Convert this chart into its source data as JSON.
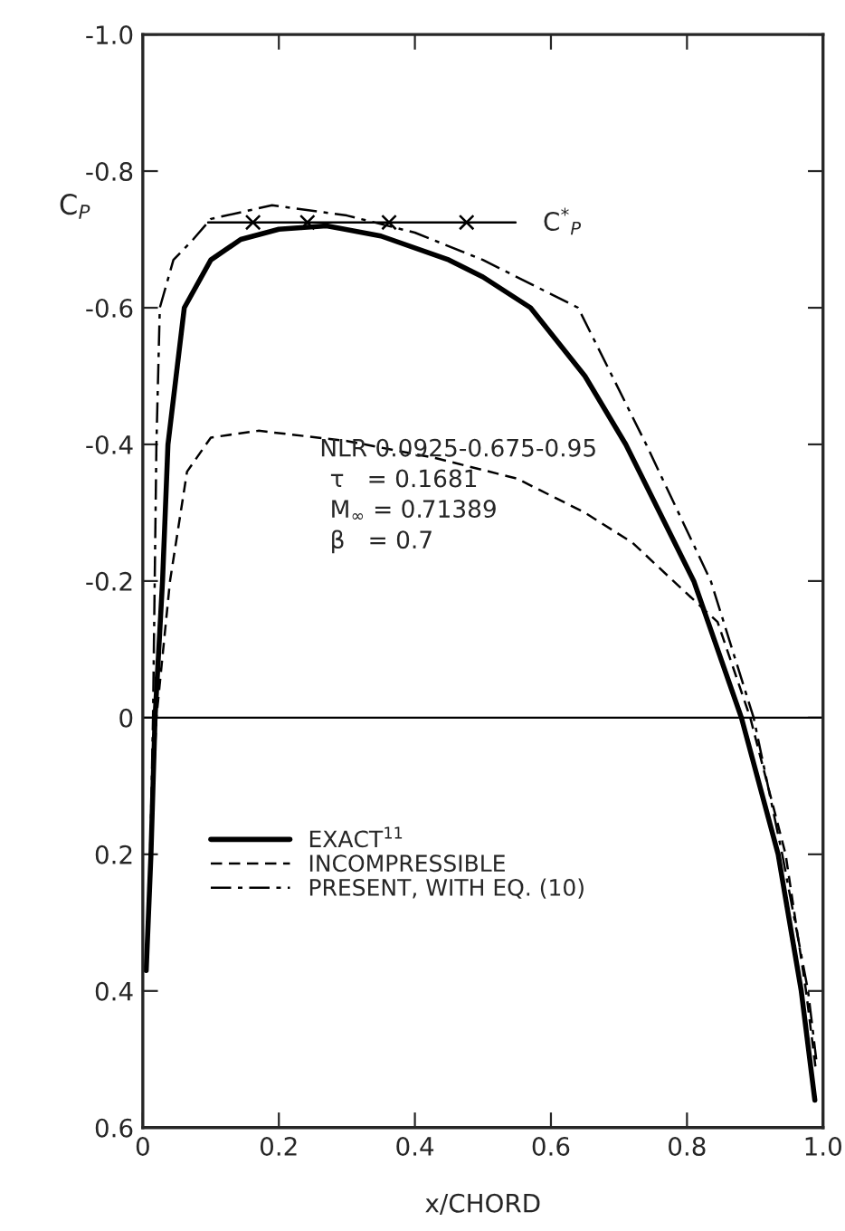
{
  "chart_data": {
    "type": "line",
    "xlabel": "x/CHORD",
    "ylabel": "C$_{P}$",
    "xlim": [
      0,
      1.0
    ],
    "xticks": [
      0,
      0.2,
      0.4,
      0.6,
      0.8,
      {
        "value": 1.0,
        "label": "1.0"
      }
    ],
    "ylim": [
      0.6,
      -1.0
    ],
    "yticks": [
      {
        "value": -1.0,
        "label": "-1.0"
      },
      {
        "value": -0.8,
        "label": "-0.8"
      },
      {
        "value": -0.6,
        "label": "-0.6"
      },
      {
        "value": -0.4,
        "label": "-0.4"
      },
      {
        "value": -0.2,
        "label": "-0.2"
      },
      0,
      0.2,
      0.4,
      0.6
    ],
    "grid": false,
    "legend": "left",
    "ref_lines": [
      {
        "axis": "y",
        "value": 0,
        "color": "#000000"
      }
    ],
    "annotations": [
      "NLR 0.0925-0.675-0.95",
      "τ   = 0.1681",
      "M$_{∞}$ = 0.71389",
      "β   = 0.7",
      {
        "text": "C$^{*}$$_{P}$",
        "x": 0.548,
        "y": -0.725
      }
    ],
    "series": [
      {
        "name": "EXACT$^{11}$",
        "color": "#000000",
        "line_style": "solid",
        "x": [
          0.005,
          0.012,
          0.018,
          0.029,
          0.037,
          0.061,
          0.1,
          0.144,
          0.2,
          0.27,
          0.35,
          0.45,
          0.5,
          0.57,
          0.65,
          0.71,
          0.81,
          0.88,
          0.934,
          0.968,
          0.988
        ],
        "values": [
          0.37,
          0.2,
          0,
          -0.2,
          -0.4,
          -0.6,
          -0.67,
          -0.7,
          -0.715,
          -0.72,
          -0.705,
          -0.67,
          -0.645,
          -0.6,
          -0.5,
          -0.4,
          -0.2,
          0,
          0.2,
          0.4,
          0.56
        ]
      },
      {
        "name": "INCOMPRESSIBLE",
        "color": "#000000",
        "line_style": "dashed",
        "x": [
          0.006,
          0.012,
          0.02,
          0.04,
          0.065,
          0.1,
          0.17,
          0.3,
          0.43,
          0.55,
          0.65,
          0.72,
          0.78,
          0.845,
          0.893,
          0.945,
          0.975,
          0.99
        ],
        "values": [
          0.33,
          0.18,
          0,
          -0.2,
          -0.36,
          -0.41,
          -0.42,
          -0.405,
          -0.38,
          -0.35,
          -0.3,
          -0.256,
          -0.2,
          -0.14,
          0,
          0.2,
          0.4,
          0.52
        ]
      },
      {
        "name": "PRESENT, WITH EQ. (10)",
        "color": "#000000",
        "line_style": "dashdot",
        "x": [
          0.008,
          0.012,
          0.015,
          0.02,
          0.025,
          0.045,
          0.074,
          0.1,
          0.19,
          0.3,
          0.4,
          0.5,
          0.64,
          0.74,
          0.835,
          0.898,
          0.94,
          0.978,
          0.99
        ],
        "values": [
          0.3,
          0.15,
          0,
          -0.4,
          -0.6,
          -0.67,
          -0.7,
          -0.73,
          -0.75,
          -0.735,
          -0.71,
          -0.67,
          -0.6,
          -0.4,
          -0.2,
          0,
          0.2,
          0.4,
          0.5
        ]
      },
      {
        "color": "#000000",
        "line_style": "solid",
        "x": [
          0.096,
          0.548
        ],
        "values": [
          -0.725,
          -0.725
        ]
      },
      {
        "type": "scatter",
        "color": "#000000",
        "marker": "cross",
        "x": [
          0.162,
          0.242,
          0.362,
          0.476
        ],
        "values": [
          -0.725,
          -0.725,
          -0.725,
          -0.725
        ]
      }
    ]
  }
}
